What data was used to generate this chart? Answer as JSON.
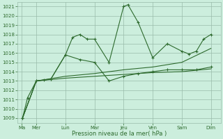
{
  "title": "",
  "xlabel": "Pression niveau de la mer( hPa )",
  "bg_color": "#cceedd",
  "grid_color": "#99bbaa",
  "line_color": "#2d6a2d",
  "ylim": [
    1008.5,
    1021.5
  ],
  "yticks": [
    1009,
    1010,
    1011,
    1012,
    1013,
    1014,
    1015,
    1016,
    1017,
    1018,
    1019,
    1020,
    1021
  ],
  "x_labels": [
    "Ma",
    "Mer",
    "Lun",
    "Mar",
    "Jeu",
    "Ven",
    "Sam",
    "Dim"
  ],
  "x_positions": [
    0,
    1,
    3,
    5,
    7,
    9,
    11,
    13
  ],
  "xlim": [
    -0.3,
    13.7
  ],
  "line_jagged": {
    "x": [
      0.05,
      0.4,
      1.0,
      1.5,
      2.0,
      3.0,
      3.5,
      4.0,
      4.5,
      5.0,
      6.0,
      7.0,
      7.3,
      8.0,
      9.0,
      10.0,
      11.0,
      11.5,
      12.0,
      12.5,
      13.0
    ],
    "y": [
      1009.0,
      1011.2,
      1013.0,
      1013.1,
      1013.2,
      1015.8,
      1017.7,
      1018.0,
      1017.5,
      1017.5,
      1015.0,
      1021.0,
      1021.2,
      1019.3,
      1015.5,
      1017.0,
      1016.2,
      1015.9,
      1016.2,
      1017.5,
      1018.0
    ]
  },
  "line_mid": {
    "x": [
      0.05,
      1.0,
      2.0,
      3.0,
      4.0,
      5.0,
      6.0,
      7.0,
      8.0,
      9.0,
      10.0,
      11.0,
      12.0,
      13.0
    ],
    "y": [
      1009.0,
      1013.0,
      1013.2,
      1015.8,
      1015.3,
      1015.0,
      1013.0,
      1013.5,
      1013.8,
      1014.0,
      1014.2,
      1014.2,
      1014.2,
      1014.5
    ]
  },
  "line_smooth1": {
    "x": [
      0.05,
      1.0,
      3.0,
      5.0,
      7.0,
      9.0,
      11.0,
      13.0
    ],
    "y": [
      1009.0,
      1013.0,
      1013.5,
      1013.8,
      1014.2,
      1014.5,
      1015.0,
      1016.5
    ]
  },
  "line_smooth2": {
    "x": [
      0.05,
      1.0,
      3.0,
      5.0,
      7.0,
      9.0,
      11.0,
      13.0
    ],
    "y": [
      1009.0,
      1013.0,
      1013.3,
      1013.5,
      1013.7,
      1013.9,
      1014.0,
      1014.3
    ]
  }
}
